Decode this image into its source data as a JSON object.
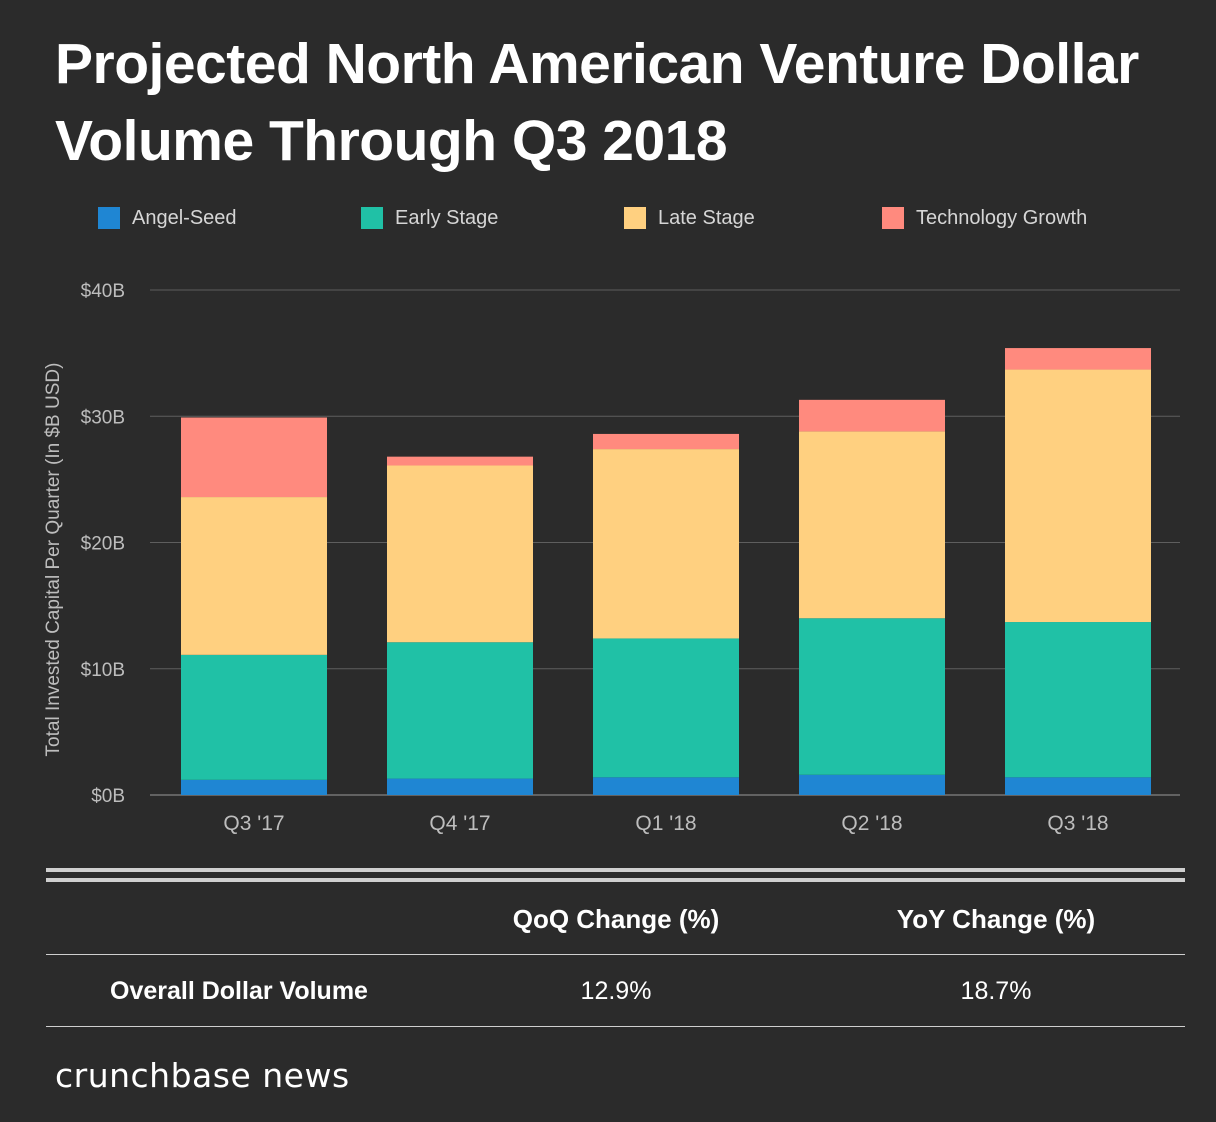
{
  "chart_data": {
    "type": "bar",
    "stacked": true,
    "title": "Projected North American Venture Dollar Volume Through Q3 2018",
    "ylabel": "Total Invested Capital Per Quarter (In $B USD)",
    "xlabel": "",
    "categories": [
      "Q3 '17",
      "Q4 '17",
      "Q1 '18",
      "Q2 '18",
      "Q3 '18"
    ],
    "ylim": [
      0,
      40
    ],
    "yticks": [
      0,
      10,
      20,
      30,
      40
    ],
    "ytick_labels": [
      "$0B",
      "$10B",
      "$20B",
      "$30B",
      "$40B"
    ],
    "grid": true,
    "legend_position": "top",
    "series": [
      {
        "name": "Angel-Seed",
        "color": "#1f86d3",
        "values": [
          1.2,
          1.3,
          1.4,
          1.6,
          1.4
        ]
      },
      {
        "name": "Early Stage",
        "color": "#20c1a6",
        "values": [
          9.9,
          10.8,
          11.0,
          12.4,
          12.3
        ]
      },
      {
        "name": "Late Stage",
        "color": "#ffd080",
        "values": [
          12.5,
          14.0,
          15.0,
          14.8,
          20.0
        ]
      },
      {
        "name": "Technology Growth",
        "color": "#ff8a7e",
        "values": [
          6.3,
          0.7,
          1.2,
          2.5,
          1.7
        ]
      }
    ]
  },
  "table": {
    "headers": [
      "QoQ Change (%)",
      "YoY Change (%)"
    ],
    "row_label": "Overall Dollar Volume",
    "values": [
      "12.9%",
      "18.7%"
    ]
  },
  "brand": "crunchbase news"
}
